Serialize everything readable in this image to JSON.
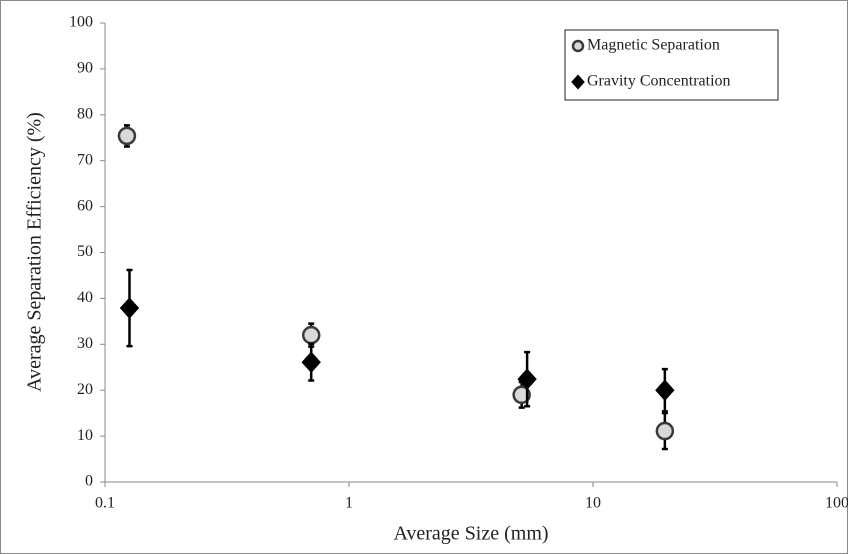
{
  "chart_data": {
    "type": "scatter",
    "x_label": "Average Size (mm)",
    "y_label": "Average Separation Efficiency (%)",
    "xlim": [
      0.1,
      100
    ],
    "xticks": [
      0.1,
      1,
      10,
      100
    ],
    "x_log": true,
    "ylim": [
      0,
      100
    ],
    "yticks": [
      0,
      10,
      20,
      30,
      40,
      50,
      60,
      70,
      80,
      90,
      100
    ],
    "grid": false,
    "legend": "upper right",
    "series": [
      {
        "name": "Magnetic Separation",
        "marker": "circle",
        "color": "#d9d9d9",
        "edge_color": "#3a3a3a",
        "x": [
          0.123,
          0.7,
          5.1,
          19.7
        ],
        "values": [
          75.4,
          32.0,
          19.0,
          11.1
        ],
        "errors": [
          2.3,
          2.5,
          2.8,
          3.9
        ]
      },
      {
        "name": "Gravity Concentration",
        "marker": "diamond",
        "color": "#000000",
        "edge_color": "#000000",
        "x": [
          0.126,
          0.7,
          5.37,
          19.7
        ],
        "values": [
          37.9,
          26.1,
          22.4,
          20.0
        ],
        "errors": [
          8.3,
          4.0,
          5.9,
          4.6
        ]
      }
    ]
  }
}
